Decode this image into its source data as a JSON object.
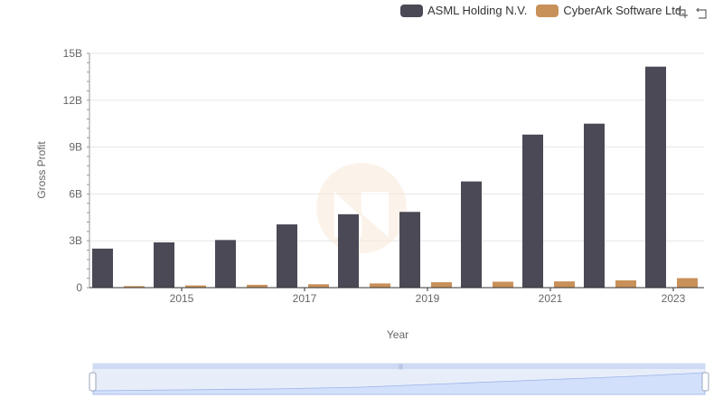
{
  "chart_data": {
    "type": "bar",
    "title": "",
    "xlabel": "Year",
    "ylabel": "Gross Profit",
    "x_tick_labels": [
      "2015",
      "2017",
      "2019",
      "2021",
      "2023"
    ],
    "y_tick_labels": [
      "0",
      "3B",
      "6B",
      "9B",
      "12B",
      "15B"
    ],
    "ylim": [
      0,
      15000000000
    ],
    "categories": [
      "2014",
      "2015",
      "2016",
      "2017",
      "2018",
      "2019",
      "2020",
      "2021",
      "2022",
      "2023"
    ],
    "series": [
      {
        "name": "ASML Holding N.V.",
        "color": "#4a4955",
        "values": [
          2500000000,
          2900000000,
          3050000000,
          4050000000,
          4700000000,
          4850000000,
          6800000000,
          9800000000,
          10500000000,
          14150000000
        ]
      },
      {
        "name": "CyberArk Software Ltd.",
        "color": "#c8915a",
        "values": [
          100000000,
          140000000,
          180000000,
          220000000,
          270000000,
          350000000,
          380000000,
          400000000,
          470000000,
          610000000
        ]
      }
    ],
    "grid": true,
    "legend_position": "top-right"
  },
  "toolbox": {
    "restore_icon": "restore-icon",
    "zoom_icon": "zoom-icon"
  },
  "datazoom": {
    "start_percent": 0,
    "end_percent": 100
  }
}
